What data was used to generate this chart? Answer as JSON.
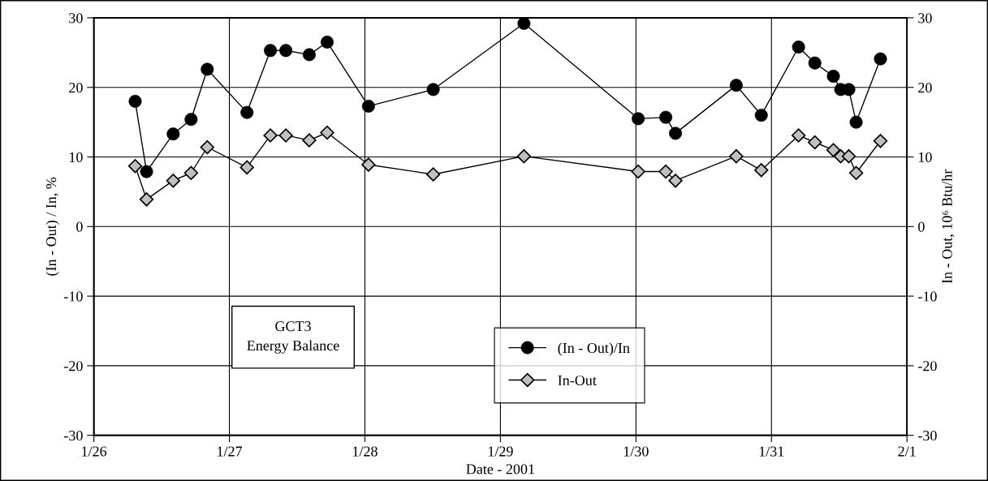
{
  "chart_data": {
    "type": "line",
    "xlabel": "Date - 2001",
    "ylabel": "(In - Out) / In, %",
    "y2label": "In - Out, 10⁶ Btu/hr",
    "annotations": [
      "GCT3\nEnergy Balance"
    ],
    "xlim": [
      "2001-01-26",
      "2001-02-01"
    ],
    "xticks": [
      {
        "value": "2001-01-26",
        "label": "1/26"
      },
      {
        "value": "2001-01-27",
        "label": "1/27"
      },
      {
        "value": "2001-01-28",
        "label": "1/28"
      },
      {
        "value": "2001-01-29",
        "label": "1/29"
      },
      {
        "value": "2001-01-30",
        "label": "1/30"
      },
      {
        "value": "2001-01-31",
        "label": "1/31"
      },
      {
        "value": "2001-02-01",
        "label": "2/1"
      }
    ],
    "ylim": [
      -30,
      30
    ],
    "yticks": [
      -30,
      -20,
      -10,
      0,
      10,
      20,
      30
    ],
    "y2lim": [
      -30,
      30
    ],
    "y2ticks": [
      -30,
      -20,
      -10,
      0,
      10,
      20,
      30
    ],
    "grid": true,
    "legend": "bottom",
    "x": [
      "2001-01-26T07:19",
      "2001-01-26T09:20",
      "2001-01-26T14:03",
      "2001-01-26T17:13",
      "2001-01-26T20:05",
      "2001-01-27T03:07",
      "2001-01-27T07:16",
      "2001-01-27T10:00",
      "2001-01-27T14:09",
      "2001-01-27T17:19",
      "2001-01-28T00:38",
      "2001-01-28T12:06",
      "2001-01-29T04:10",
      "2001-01-30T00:24",
      "2001-01-30T05:17",
      "2001-01-30T07:00",
      "2001-01-30T17:46",
      "2001-01-30T22:12",
      "2001-01-31T04:48",
      "2001-01-31T07:41",
      "2001-01-31T10:58",
      "2001-01-31T12:16",
      "2001-01-31T13:42",
      "2001-01-31T15:00",
      "2001-01-31T19:18"
    ],
    "series": [
      {
        "name": "(In - Out)/In",
        "color": "#000000",
        "marker": "circle",
        "values": [
          18.0,
          7.9,
          13.3,
          15.4,
          22.6,
          16.4,
          25.3,
          25.3,
          24.7,
          26.5,
          17.3,
          19.7,
          29.2,
          15.5,
          15.7,
          13.4,
          20.3,
          16.0,
          25.8,
          23.5,
          21.6,
          19.7,
          19.7,
          15.0,
          24.1
        ]
      },
      {
        "name": "In-Out",
        "color": "#c0c0c0",
        "marker": "diamond",
        "axis": "y2",
        "values": [
          8.7,
          3.9,
          6.6,
          7.7,
          11.4,
          8.5,
          13.1,
          13.1,
          12.4,
          13.5,
          8.9,
          7.5,
          10.1,
          7.9,
          7.9,
          6.6,
          10.1,
          8.1,
          13.1,
          12.1,
          11.0,
          10.1,
          10.1,
          7.7,
          12.3
        ]
      }
    ]
  }
}
